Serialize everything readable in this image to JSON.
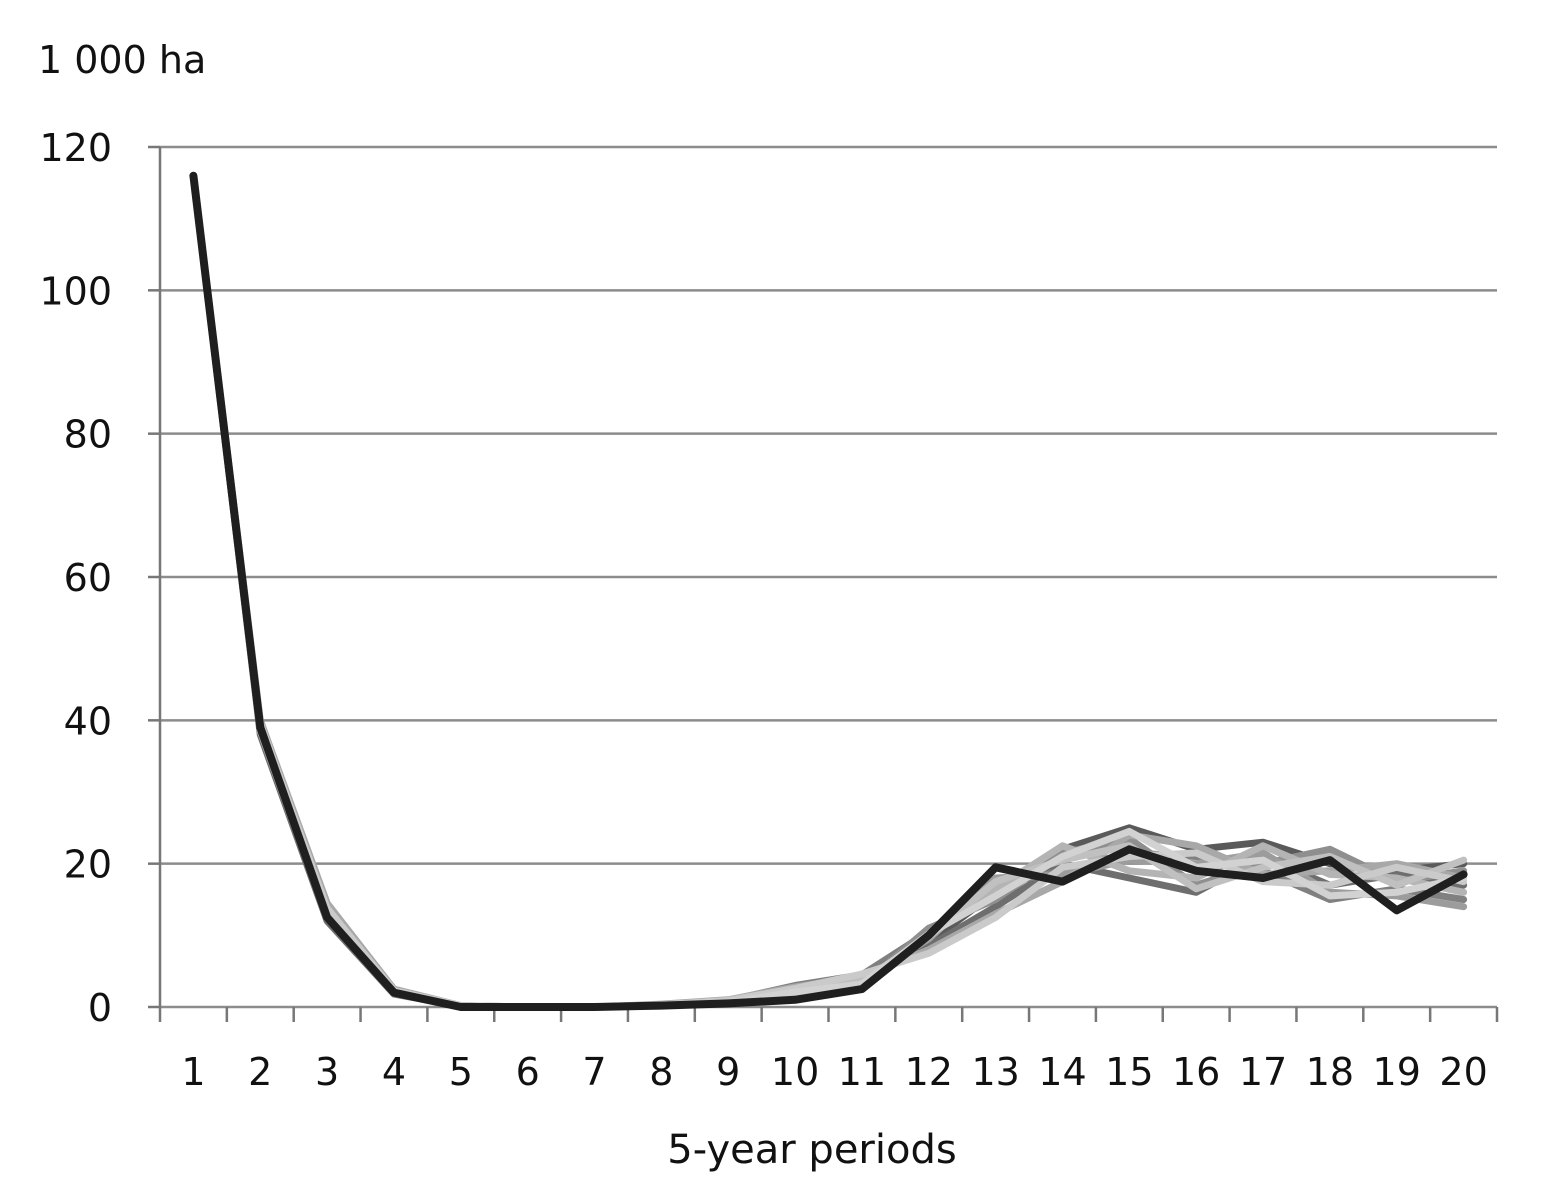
{
  "chart_data": {
    "type": "line",
    "ylabel": "1 000 ha",
    "xlabel": "5-year periods",
    "categories": [
      "1",
      "2",
      "3",
      "4",
      "5",
      "6",
      "7",
      "8",
      "9",
      "10",
      "11",
      "12",
      "13",
      "14",
      "15",
      "16",
      "17",
      "18",
      "19",
      "20"
    ],
    "ylim": [
      0,
      120
    ],
    "yticks": [
      "0",
      "20",
      "40",
      "60",
      "80",
      "100",
      "120"
    ],
    "grid": "horizontal",
    "legend": "none",
    "colors": {
      "main": "#1f1f1f",
      "grays": [
        "#5a5a5a",
        "#6e6e6e",
        "#808080",
        "#8f8f8f",
        "#9c9c9c",
        "#a8a8a8",
        "#b4b4b4",
        "#c0c0c0",
        "#cacaca",
        "#d2d2d2",
        "#777777",
        "#999999"
      ],
      "grid": "#8c8c8c",
      "axis": "#777777"
    },
    "main_series": {
      "values": [
        116,
        39,
        12.5,
        2,
        0,
        0,
        0,
        0.2,
        0.5,
        1,
        2.5,
        10,
        19.5,
        17.5,
        22,
        19,
        18,
        20.5,
        13.5,
        18.5
      ]
    },
    "series": [
      {
        "values": [
          116,
          39.5,
          13.5,
          2.2,
          0.1,
          0,
          0,
          0.3,
          0.8,
          2.5,
          3.5,
          9,
          16,
          22,
          25,
          22,
          23,
          20,
          19,
          20
        ]
      },
      {
        "values": [
          116,
          38,
          12,
          1.8,
          0.1,
          0,
          0,
          0.3,
          0.7,
          2,
          4,
          8.5,
          14,
          20,
          18,
          16,
          21,
          17,
          18.5,
          17
        ]
      },
      {
        "values": [
          116,
          39.5,
          14,
          2.4,
          0.2,
          0,
          0,
          0.3,
          0.9,
          3,
          4.5,
          10.5,
          17,
          19,
          21.5,
          21,
          19,
          15,
          16.5,
          15
        ]
      },
      {
        "values": [
          116,
          38.5,
          13,
          2,
          0.1,
          0,
          0,
          0.2,
          0.6,
          1.5,
          3,
          11,
          15,
          21.5,
          23.5,
          17,
          20,
          22,
          17.5,
          19
        ]
      },
      {
        "values": [
          116,
          39,
          12.8,
          2.1,
          0.1,
          0,
          0,
          0.3,
          0.7,
          2.2,
          3.8,
          9.5,
          18,
          18.5,
          20.5,
          20,
          21.5,
          16,
          15.5,
          14
        ]
      },
      {
        "values": [
          116,
          40,
          14.5,
          2.5,
          0.2,
          0,
          0,
          0.4,
          1,
          2.8,
          4.2,
          8,
          13,
          17.5,
          24,
          22.5,
          18.5,
          19,
          20,
          18
        ]
      },
      {
        "values": [
          116,
          38.8,
          13.2,
          2.2,
          0.1,
          0,
          0,
          0.2,
          0.5,
          1.8,
          2.8,
          10,
          16.5,
          22.5,
          19,
          18,
          22.5,
          18.5,
          18,
          16
        ]
      },
      {
        "values": [
          116,
          39.2,
          12.6,
          1.9,
          0.1,
          0,
          0,
          0.3,
          0.8,
          2.4,
          3.6,
          9.8,
          17.5,
          20.5,
          22.5,
          16.5,
          19.5,
          21,
          17,
          20.5
        ]
      },
      {
        "values": [
          116,
          39.6,
          13.8,
          2.3,
          0.2,
          0,
          0,
          0.3,
          0.9,
          2.6,
          4.6,
          7.5,
          12.5,
          19.5,
          21,
          21.5,
          17.5,
          17,
          19.5,
          17.5
        ]
      },
      {
        "values": [
          116,
          38.6,
          12.4,
          2,
          0.1,
          0,
          0,
          0.2,
          0.6,
          2.1,
          3.2,
          10.2,
          15.5,
          21,
          24.5,
          19.5,
          20.5,
          15.5,
          16,
          18
        ]
      }
    ]
  }
}
